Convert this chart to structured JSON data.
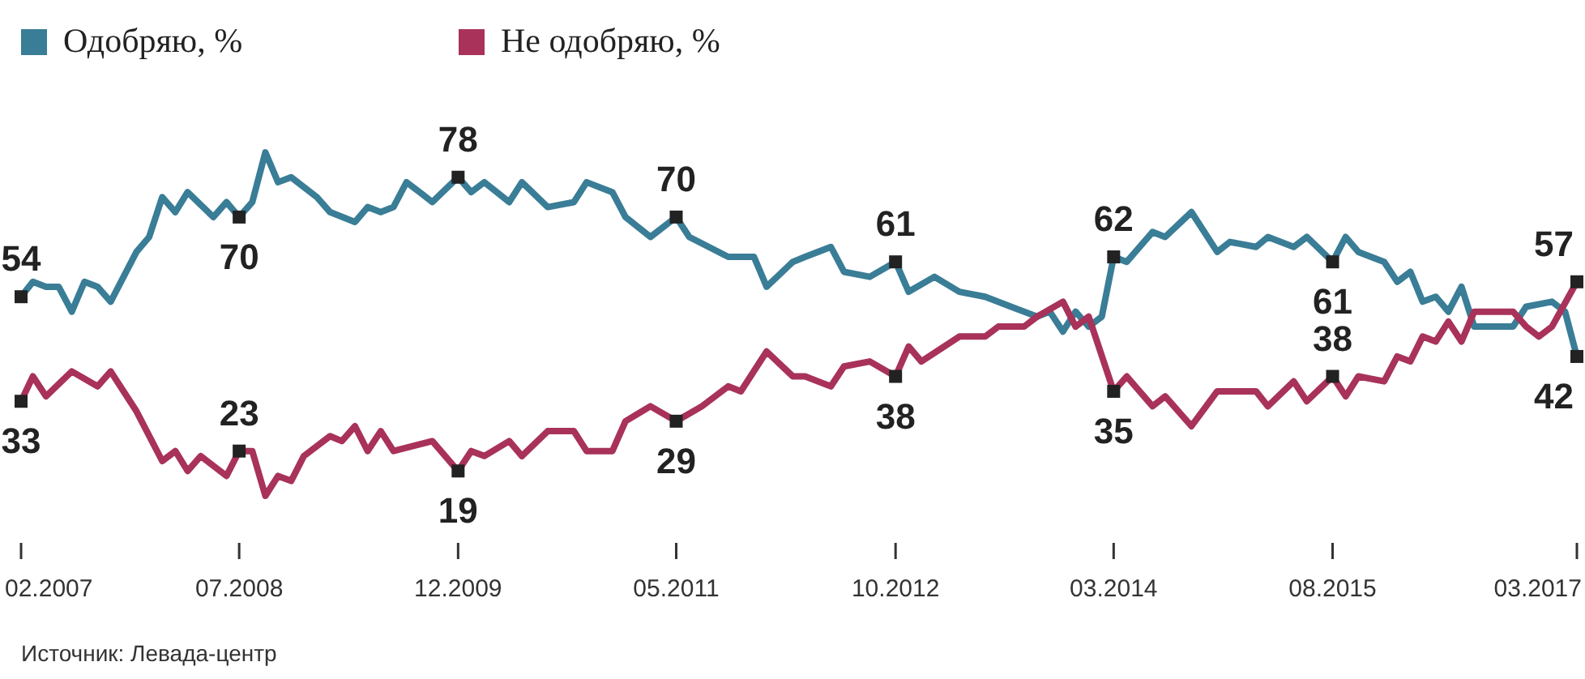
{
  "chart_data": {
    "type": "line",
    "legend": "top left",
    "marker": "none",
    "line_style": "solid",
    "tick_labels": "x",
    "xlim": [
      "2007-02",
      "2017-03"
    ],
    "xticks": [
      {
        "value": "2007-02",
        "label": "02.2007"
      },
      {
        "value": "2008-07",
        "label": "07.2008"
      },
      {
        "value": "2009-12",
        "label": "12.2009"
      },
      {
        "value": "2011-05",
        "label": "05.2011"
      },
      {
        "value": "2012-10",
        "label": "10.2012"
      },
      {
        "value": "2014-03",
        "label": "03.2014"
      },
      {
        "value": "2015-08",
        "label": "08.2015"
      },
      {
        "value": "2017-03",
        "label": "03.2017"
      }
    ],
    "annotations": [
      "Источник: Левада-центр"
    ],
    "series": [
      {
        "name": "Одобряю, %",
        "color": "#3a7d96",
        "x": [
          "2007-02",
          "2007-03",
          "2007-04",
          "2007-05",
          "2007-06",
          "2007-07",
          "2007-08",
          "2007-09",
          "2007-11",
          "2007-12",
          "2008-01",
          "2008-02",
          "2008-03",
          "2008-05",
          "2008-06",
          "2008-07",
          "2008-08",
          "2008-09",
          "2008-10",
          "2008-11",
          "2009-01",
          "2009-02",
          "2009-04",
          "2009-05",
          "2009-06",
          "2009-07",
          "2009-08",
          "2009-09",
          "2009-10",
          "2009-12",
          "2010-01",
          "2010-02",
          "2010-04",
          "2010-05",
          "2010-07",
          "2010-09",
          "2010-10",
          "2010-12",
          "2011-01",
          "2011-03",
          "2011-05",
          "2011-06",
          "2011-09",
          "2011-11",
          "2011-12",
          "2012-02",
          "2012-03",
          "2012-05",
          "2012-06",
          "2012-08",
          "2012-10",
          "2012-11",
          "2013-01",
          "2013-03",
          "2013-05",
          "2013-07",
          "2013-09",
          "2013-10",
          "2013-11",
          "2013-12",
          "2014-01",
          "2014-02",
          "2014-03",
          "2014-04",
          "2014-06",
          "2014-07",
          "2014-09",
          "2014-11",
          "2014-12",
          "2015-02",
          "2015-03",
          "2015-05",
          "2015-06",
          "2015-08",
          "2015-09",
          "2015-10",
          "2015-12",
          "2016-01",
          "2016-02",
          "2016-03",
          "2016-04",
          "2016-05",
          "2016-06",
          "2016-07",
          "2016-10",
          "2016-11",
          "2017-01",
          "2017-02",
          "2017-03"
        ],
        "values": [
          54,
          57,
          56,
          56,
          51,
          57,
          56,
          53,
          63,
          66,
          74,
          71,
          75,
          70,
          73,
          70,
          73,
          83,
          77,
          78,
          74,
          71,
          69,
          72,
          71,
          72,
          77,
          75,
          73,
          78,
          75,
          77,
          73,
          77,
          72,
          73,
          77,
          75,
          70,
          66,
          70,
          66,
          62,
          62,
          56,
          61,
          62,
          64,
          59,
          58,
          61,
          55,
          58,
          55,
          54,
          52,
          50,
          51,
          47,
          51,
          48,
          50,
          62,
          61,
          67,
          66,
          71,
          63,
          65,
          64,
          66,
          64,
          66,
          61,
          66,
          63,
          61,
          57,
          59,
          53,
          54,
          51,
          56,
          48,
          48,
          52,
          53,
          51,
          42
        ],
        "value_labels": [
          "54",
          null,
          null,
          null,
          null,
          null,
          null,
          null,
          null,
          null,
          null,
          null,
          null,
          null,
          null,
          "70",
          null,
          null,
          null,
          null,
          null,
          null,
          null,
          null,
          null,
          null,
          null,
          null,
          null,
          "78",
          null,
          null,
          null,
          null,
          null,
          null,
          null,
          null,
          null,
          null,
          "70",
          null,
          null,
          null,
          null,
          null,
          null,
          null,
          null,
          null,
          "61",
          null,
          null,
          null,
          null,
          null,
          null,
          null,
          null,
          null,
          null,
          null,
          "62",
          null,
          null,
          null,
          null,
          null,
          null,
          null,
          null,
          null,
          null,
          "61",
          null,
          null,
          null,
          null,
          null,
          null,
          null,
          null,
          null,
          null,
          null,
          null,
          null,
          null,
          "42"
        ]
      },
      {
        "name": "Не одобряю, %",
        "color": "#a8325a",
        "x": [
          "2007-02",
          "2007-03",
          "2007-04",
          "2007-06",
          "2007-08",
          "2007-09",
          "2007-11",
          "2008-01",
          "2008-02",
          "2008-03",
          "2008-04",
          "2008-06",
          "2008-07",
          "2008-08",
          "2008-09",
          "2008-10",
          "2008-11",
          "2008-12",
          "2009-02",
          "2009-03",
          "2009-04",
          "2009-05",
          "2009-06",
          "2009-07",
          "2009-10",
          "2009-12",
          "2010-01",
          "2010-02",
          "2010-04",
          "2010-05",
          "2010-07",
          "2010-09",
          "2010-10",
          "2010-12",
          "2011-01",
          "2011-03",
          "2011-05",
          "2011-07",
          "2011-09",
          "2011-10",
          "2011-12",
          "2012-02",
          "2012-03",
          "2012-05",
          "2012-06",
          "2012-08",
          "2012-10",
          "2012-11",
          "2012-12",
          "2013-03",
          "2013-05",
          "2013-06",
          "2013-08",
          "2013-09",
          "2013-11",
          "2013-12",
          "2014-01",
          "2014-03",
          "2014-04",
          "2014-06",
          "2014-07",
          "2014-09",
          "2014-11",
          "2014-12",
          "2015-02",
          "2015-03",
          "2015-05",
          "2015-06",
          "2015-08",
          "2015-09",
          "2015-10",
          "2015-12",
          "2016-01",
          "2016-02",
          "2016-03",
          "2016-04",
          "2016-05",
          "2016-06",
          "2016-07",
          "2016-10",
          "2016-11",
          "2016-12",
          "2017-01",
          "2017-03"
        ],
        "values": [
          33,
          38,
          34,
          39,
          36,
          39,
          31,
          21,
          23,
          19,
          22,
          18,
          23,
          23,
          14,
          18,
          17,
          22,
          26,
          25,
          28,
          23,
          27,
          23,
          25,
          19,
          23,
          22,
          25,
          22,
          27,
          27,
          23,
          23,
          29,
          32,
          29,
          32,
          36,
          35,
          43,
          38,
          38,
          36,
          40,
          41,
          38,
          44,
          41,
          46,
          46,
          48,
          48,
          50,
          53,
          48,
          50,
          35,
          38,
          32,
          34,
          28,
          35,
          35,
          35,
          32,
          37,
          33,
          38,
          34,
          38,
          37,
          42,
          41,
          46,
          45,
          49,
          45,
          51,
          51,
          48,
          46,
          48,
          57
        ],
        "value_labels": [
          "33",
          null,
          null,
          null,
          null,
          null,
          null,
          null,
          null,
          null,
          null,
          null,
          "23",
          null,
          null,
          null,
          null,
          null,
          null,
          null,
          null,
          null,
          null,
          null,
          null,
          "19",
          null,
          null,
          null,
          null,
          null,
          null,
          null,
          null,
          null,
          null,
          "29",
          null,
          null,
          null,
          null,
          null,
          null,
          null,
          null,
          null,
          "38",
          null,
          null,
          null,
          null,
          null,
          null,
          null,
          null,
          null,
          null,
          "35",
          null,
          null,
          null,
          null,
          null,
          null,
          null,
          null,
          null,
          null,
          "38",
          null,
          null,
          null,
          null,
          null,
          null,
          null,
          null,
          null,
          null,
          null,
          null,
          null,
          null,
          "57"
        ]
      }
    ]
  }
}
